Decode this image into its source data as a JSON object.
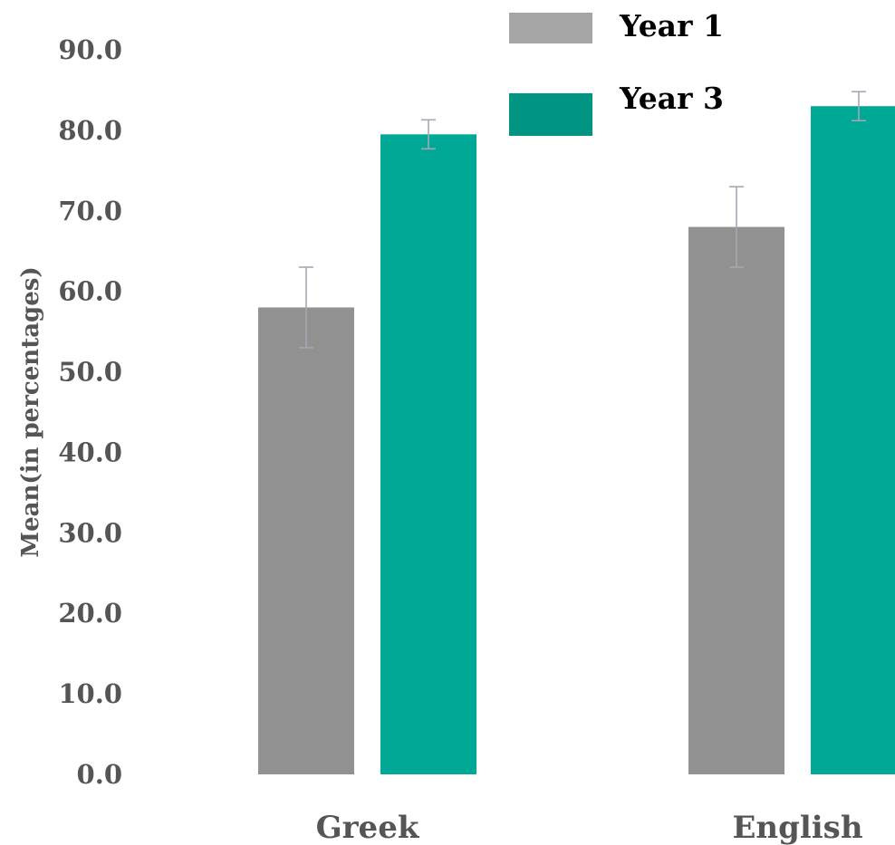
{
  "chart_data": {
    "type": "bar",
    "title": "",
    "xlabel": "",
    "ylabel": "Mean(in percentages)",
    "ylim": [
      0,
      90
    ],
    "yticks": [
      "0.0",
      "10.0",
      "20.0",
      "30.0",
      "40.0",
      "50.0",
      "60.0",
      "70.0",
      "80.0",
      "90.0"
    ],
    "categories": [
      "Greek",
      "English"
    ],
    "grid": false,
    "legend_position": "top-right",
    "series": [
      {
        "name": "Year 1",
        "color": "#919191",
        "legend_color": "#a5a5a5",
        "values": [
          58.0,
          68.0
        ],
        "errors": [
          5.0,
          5.0
        ]
      },
      {
        "name": "Year 3",
        "color": "#00a896",
        "legend_color": "#009582",
        "values": [
          79.5,
          83.0
        ],
        "errors": [
          1.8,
          1.8
        ]
      }
    ]
  }
}
